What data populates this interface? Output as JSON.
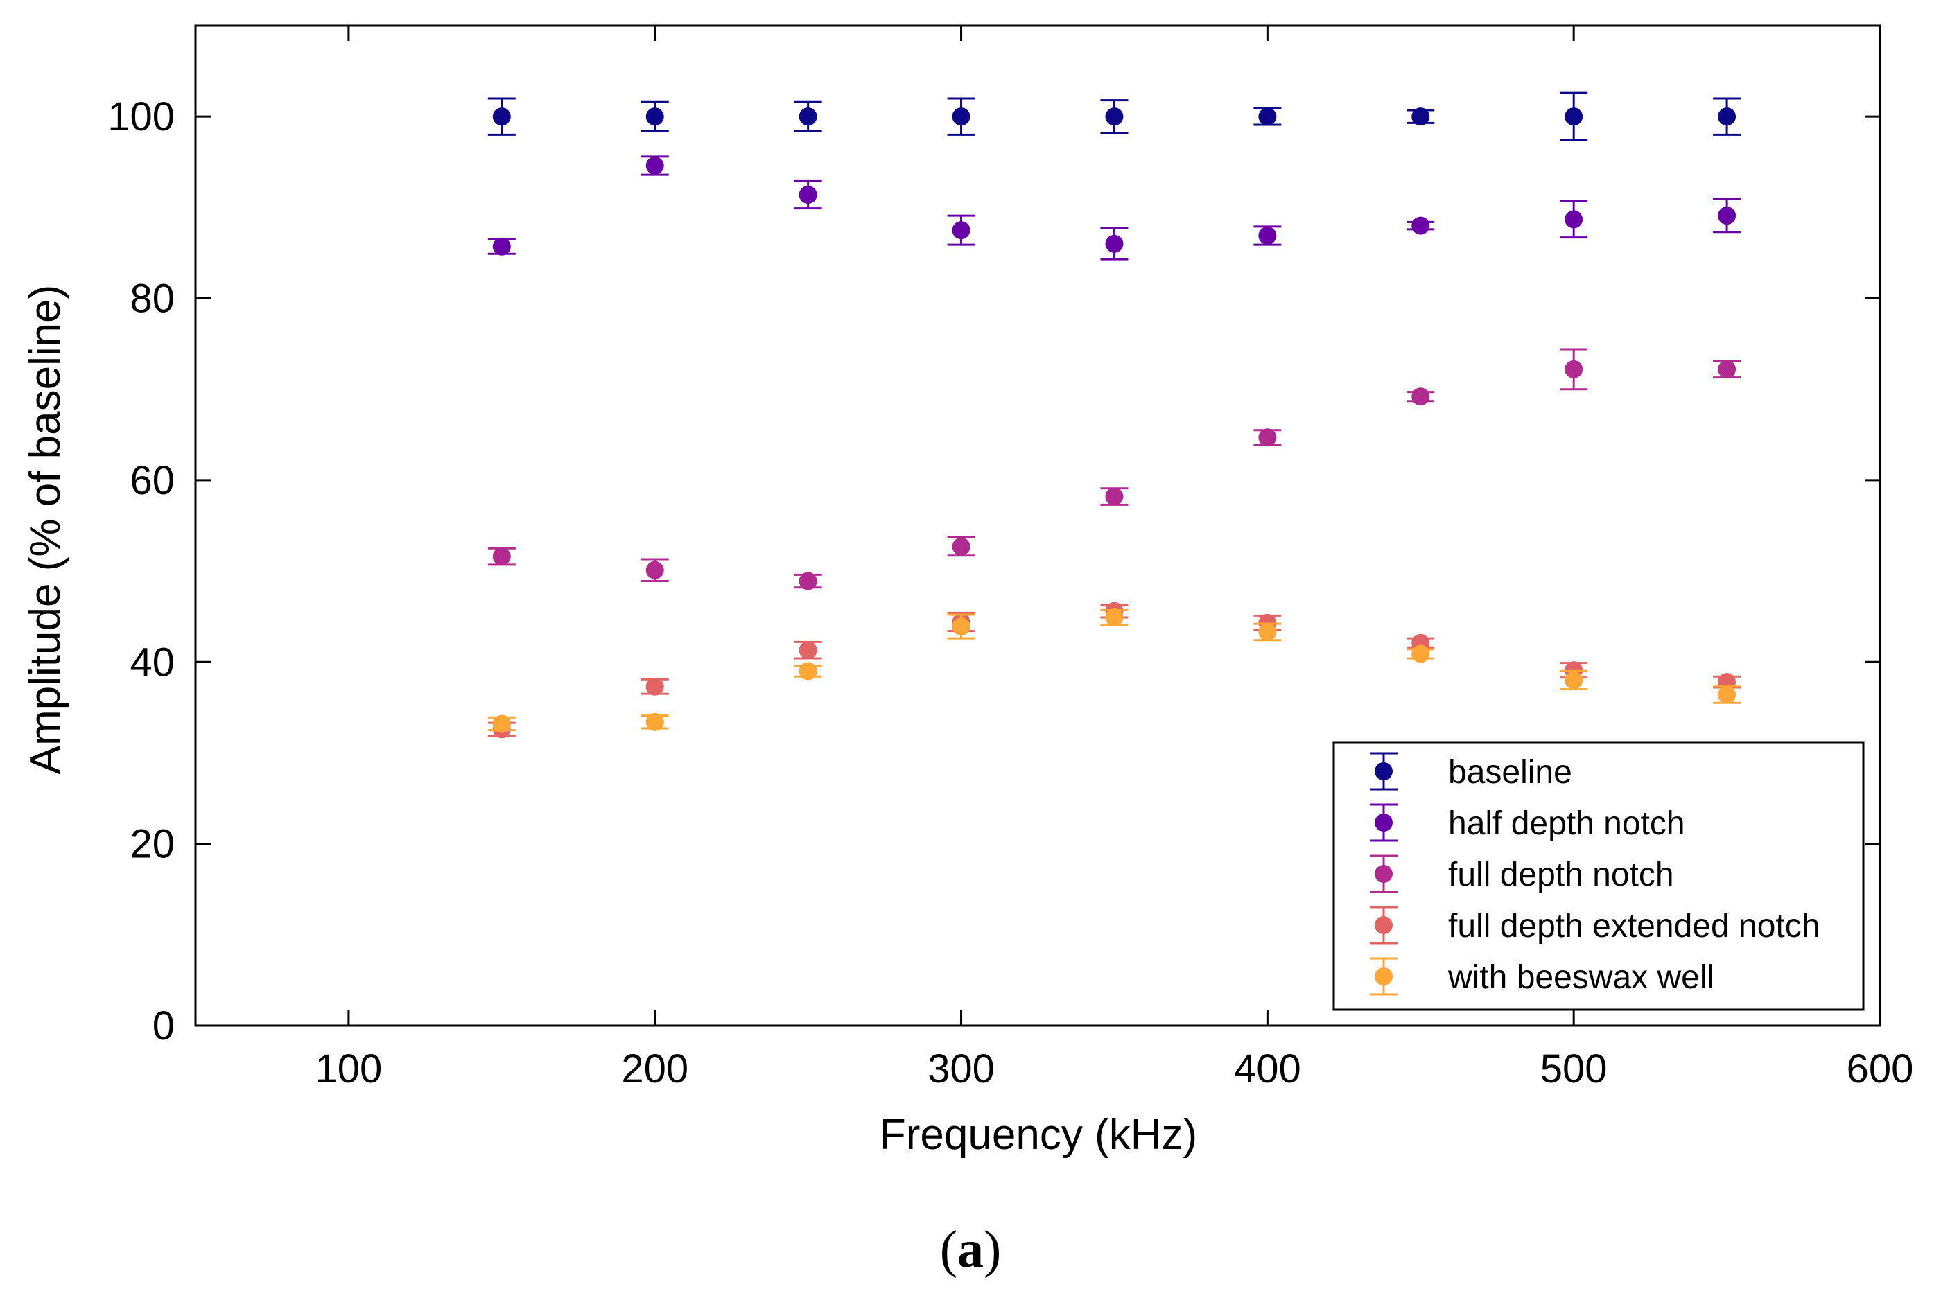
{
  "chart_data": {
    "type": "scatter",
    "xlabel": "Frequency (kHz)",
    "ylabel": "Amplitude (% of baseline)",
    "xlim": [
      50,
      600
    ],
    "ylim": [
      0,
      110
    ],
    "xticks": [
      100,
      200,
      300,
      400,
      500,
      600
    ],
    "yticks": [
      0,
      20,
      40,
      60,
      80,
      100
    ],
    "x": [
      150,
      200,
      250,
      300,
      350,
      400,
      450,
      500,
      550
    ],
    "legend_position": "lower-right",
    "series": [
      {
        "name": "baseline",
        "color": "#0d0887",
        "values": [
          100,
          100,
          100,
          100,
          100,
          100,
          100,
          100,
          100
        ],
        "errors": [
          2.0,
          1.6,
          1.6,
          2.0,
          1.8,
          0.9,
          0.7,
          2.6,
          2.0
        ]
      },
      {
        "name": "half depth notch",
        "color": "#6a00a8",
        "values": [
          85.7,
          94.6,
          91.4,
          87.5,
          86.0,
          86.9,
          88.0,
          88.7,
          89.1
        ],
        "errors": [
          0.8,
          1.0,
          1.5,
          1.6,
          1.7,
          1.0,
          0.4,
          2.0,
          1.8
        ]
      },
      {
        "name": "full depth notch",
        "color": "#b12a90",
        "values": [
          51.6,
          50.1,
          48.9,
          52.7,
          58.2,
          64.7,
          69.2,
          72.2,
          72.2
        ],
        "errors": [
          0.9,
          1.2,
          0.7,
          1.0,
          0.9,
          0.8,
          0.5,
          2.2,
          0.9
        ]
      },
      {
        "name": "full depth extended notch",
        "color": "#e16462",
        "values": [
          32.6,
          37.3,
          41.3,
          44.4,
          45.6,
          44.3,
          42.1,
          39.1,
          37.8
        ],
        "errors": [
          0.7,
          0.8,
          0.9,
          1.0,
          0.7,
          0.8,
          0.5,
          0.8,
          0.6
        ]
      },
      {
        "name": "with beeswax well",
        "color": "#fca636",
        "values": [
          33.2,
          33.4,
          39.0,
          43.9,
          44.9,
          43.3,
          40.9,
          38.0,
          36.4
        ],
        "errors": [
          0.7,
          0.7,
          0.6,
          1.3,
          0.8,
          0.9,
          0.5,
          1.0,
          0.9
        ]
      }
    ]
  },
  "caption": {
    "open": "(",
    "letter": "a",
    "close": ")"
  }
}
